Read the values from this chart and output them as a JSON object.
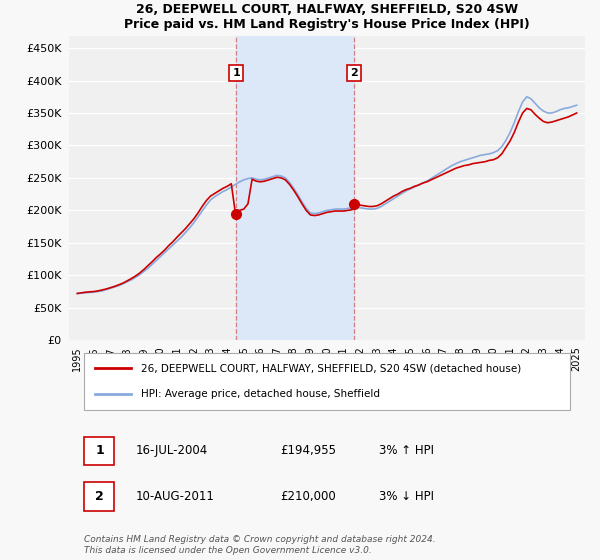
{
  "title_line1": "26, DEEPWELL COURT, HALFWAY, SHEFFIELD, S20 4SW",
  "title_line2": "Price paid vs. HM Land Registry's House Price Index (HPI)",
  "yticks": [
    0,
    50000,
    100000,
    150000,
    200000,
    250000,
    300000,
    350000,
    400000,
    450000
  ],
  "ytick_labels": [
    "£0",
    "£50K",
    "£100K",
    "£150K",
    "£200K",
    "£250K",
    "£300K",
    "£350K",
    "£400K",
    "£450K"
  ],
  "ylim": [
    0,
    468000
  ],
  "xlim_start": 1994.5,
  "xlim_end": 2025.5,
  "xticks": [
    1995,
    1996,
    1997,
    1998,
    1999,
    2000,
    2001,
    2002,
    2003,
    2004,
    2005,
    2006,
    2007,
    2008,
    2009,
    2010,
    2011,
    2012,
    2013,
    2014,
    2015,
    2016,
    2017,
    2018,
    2019,
    2020,
    2021,
    2022,
    2023,
    2024,
    2025
  ],
  "background_color": "#f8f8f8",
  "plot_bg_color": "#f0f0f0",
  "grid_color": "#ffffff",
  "highlight_color": "#dce8f8",
  "red_line_color": "#cc0000",
  "blue_line_color": "#88aadd",
  "marker1_date": 2004.54,
  "marker1_value": 194955,
  "marker1_label": "1",
  "marker2_date": 2011.61,
  "marker2_value": 210000,
  "marker2_label": "2",
  "legend_line1": "26, DEEPWELL COURT, HALFWAY, SHEFFIELD, S20 4SW (detached house)",
  "legend_line2": "HPI: Average price, detached house, Sheffield",
  "table_row1_num": "1",
  "table_row1_date": "16-JUL-2004",
  "table_row1_price": "£194,955",
  "table_row1_hpi": "3% ↑ HPI",
  "table_row2_num": "2",
  "table_row2_date": "10-AUG-2011",
  "table_row2_price": "£210,000",
  "table_row2_hpi": "3% ↓ HPI",
  "footer": "Contains HM Land Registry data © Crown copyright and database right 2024.\nThis data is licensed under the Open Government Licence v3.0.",
  "hpi_x": [
    1995.0,
    1995.25,
    1995.5,
    1995.75,
    1996.0,
    1996.25,
    1996.5,
    1996.75,
    1997.0,
    1997.25,
    1997.5,
    1997.75,
    1998.0,
    1998.25,
    1998.5,
    1998.75,
    1999.0,
    1999.25,
    1999.5,
    1999.75,
    2000.0,
    2000.25,
    2000.5,
    2000.75,
    2001.0,
    2001.25,
    2001.5,
    2001.75,
    2002.0,
    2002.25,
    2002.5,
    2002.75,
    2003.0,
    2003.25,
    2003.5,
    2003.75,
    2004.0,
    2004.25,
    2004.5,
    2004.75,
    2005.0,
    2005.25,
    2005.5,
    2005.75,
    2006.0,
    2006.25,
    2006.5,
    2006.75,
    2007.0,
    2007.25,
    2007.5,
    2007.75,
    2008.0,
    2008.25,
    2008.5,
    2008.75,
    2009.0,
    2009.25,
    2009.5,
    2009.75,
    2010.0,
    2010.25,
    2010.5,
    2010.75,
    2011.0,
    2011.25,
    2011.5,
    2011.75,
    2012.0,
    2012.25,
    2012.5,
    2012.75,
    2013.0,
    2013.25,
    2013.5,
    2013.75,
    2014.0,
    2014.25,
    2014.5,
    2014.75,
    2015.0,
    2015.25,
    2015.5,
    2015.75,
    2016.0,
    2016.25,
    2016.5,
    2016.75,
    2017.0,
    2017.25,
    2017.5,
    2017.75,
    2018.0,
    2018.25,
    2018.5,
    2018.75,
    2019.0,
    2019.25,
    2019.5,
    2019.75,
    2020.0,
    2020.25,
    2020.5,
    2020.75,
    2021.0,
    2021.25,
    2021.5,
    2021.75,
    2022.0,
    2022.25,
    2022.5,
    2022.75,
    2023.0,
    2023.25,
    2023.5,
    2023.75,
    2024.0,
    2024.25,
    2024.5,
    2024.75,
    2025.0
  ],
  "hpi_y": [
    72000,
    72500,
    73000,
    73500,
    74000,
    75000,
    76000,
    78000,
    80000,
    82000,
    84000,
    87000,
    90000,
    93000,
    97000,
    101000,
    106000,
    111000,
    117000,
    123000,
    129000,
    135000,
    141000,
    147000,
    153000,
    159000,
    166000,
    173000,
    181000,
    190000,
    199000,
    208000,
    216000,
    221000,
    225000,
    229000,
    232000,
    236000,
    240000,
    244000,
    247000,
    249000,
    250000,
    248000,
    247000,
    248000,
    250000,
    252000,
    254000,
    253000,
    250000,
    243000,
    234000,
    224000,
    213000,
    203000,
    196000,
    195000,
    196000,
    198000,
    200000,
    201000,
    202000,
    202000,
    202000,
    203000,
    204000,
    205000,
    204000,
    203000,
    202000,
    202000,
    203000,
    206000,
    210000,
    214000,
    218000,
    222000,
    226000,
    230000,
    233000,
    236000,
    239000,
    242000,
    245000,
    249000,
    253000,
    257000,
    261000,
    265000,
    269000,
    272000,
    275000,
    277000,
    279000,
    281000,
    283000,
    285000,
    286000,
    287000,
    289000,
    292000,
    298000,
    308000,
    320000,
    335000,
    352000,
    367000,
    375000,
    372000,
    365000,
    358000,
    353000,
    350000,
    350000,
    352000,
    355000,
    357000,
    358000,
    360000,
    362000
  ],
  "red_x": [
    1995.0,
    1995.25,
    1995.5,
    1995.75,
    1996.0,
    1996.25,
    1996.5,
    1996.75,
    1997.0,
    1997.25,
    1997.5,
    1997.75,
    1998.0,
    1998.25,
    1998.5,
    1998.75,
    1999.0,
    1999.25,
    1999.5,
    1999.75,
    2000.0,
    2000.25,
    2000.5,
    2000.75,
    2001.0,
    2001.25,
    2001.5,
    2001.75,
    2002.0,
    2002.25,
    2002.5,
    2002.75,
    2003.0,
    2003.25,
    2003.5,
    2003.75,
    2004.0,
    2004.25,
    2004.5,
    2004.75,
    2005.0,
    2005.25,
    2005.5,
    2005.75,
    2006.0,
    2006.25,
    2006.5,
    2006.75,
    2007.0,
    2007.25,
    2007.5,
    2007.75,
    2008.0,
    2008.25,
    2008.5,
    2008.75,
    2009.0,
    2009.25,
    2009.5,
    2009.75,
    2010.0,
    2010.25,
    2010.5,
    2010.75,
    2011.0,
    2011.25,
    2011.5,
    2011.75,
    2012.0,
    2012.25,
    2012.5,
    2012.75,
    2013.0,
    2013.25,
    2013.5,
    2013.75,
    2014.0,
    2014.25,
    2014.5,
    2014.75,
    2015.0,
    2015.25,
    2015.5,
    2015.75,
    2016.0,
    2016.25,
    2016.5,
    2016.75,
    2017.0,
    2017.25,
    2017.5,
    2017.75,
    2018.0,
    2018.25,
    2018.5,
    2018.75,
    2019.0,
    2019.25,
    2019.5,
    2019.75,
    2020.0,
    2020.25,
    2020.5,
    2020.75,
    2021.0,
    2021.25,
    2021.5,
    2021.75,
    2022.0,
    2022.25,
    2022.5,
    2022.75,
    2023.0,
    2023.25,
    2023.5,
    2023.75,
    2024.0,
    2024.25,
    2024.5,
    2024.75,
    2025.0
  ],
  "red_y": [
    72000,
    73000,
    74000,
    74500,
    75000,
    76000,
    77500,
    79000,
    81000,
    83000,
    85500,
    88000,
    91500,
    95000,
    99000,
    103500,
    109000,
    115000,
    121000,
    127500,
    133000,
    139000,
    146000,
    152000,
    159000,
    165500,
    172000,
    179500,
    187000,
    196000,
    206000,
    215000,
    222000,
    226000,
    230000,
    234000,
    237000,
    241000,
    194955,
    200000,
    202000,
    210000,
    248000,
    245000,
    244000,
    245000,
    247000,
    249000,
    251000,
    250000,
    247000,
    240000,
    231000,
    221000,
    210000,
    200000,
    193000,
    192000,
    193000,
    195000,
    197000,
    198000,
    199000,
    199000,
    199000,
    200000,
    201000,
    210000,
    208000,
    207000,
    206000,
    206000,
    207000,
    210000,
    214000,
    218000,
    222000,
    225000,
    229000,
    232000,
    234000,
    237000,
    239000,
    242000,
    244000,
    247000,
    250000,
    253000,
    256000,
    259000,
    262000,
    265000,
    267000,
    269000,
    270000,
    272000,
    273000,
    274000,
    275000,
    277000,
    278000,
    281000,
    287000,
    297000,
    307000,
    320000,
    336000,
    350000,
    357000,
    355000,
    348000,
    342000,
    337000,
    335000,
    336000,
    338000,
    340000,
    342000,
    344000,
    347000,
    350000
  ]
}
